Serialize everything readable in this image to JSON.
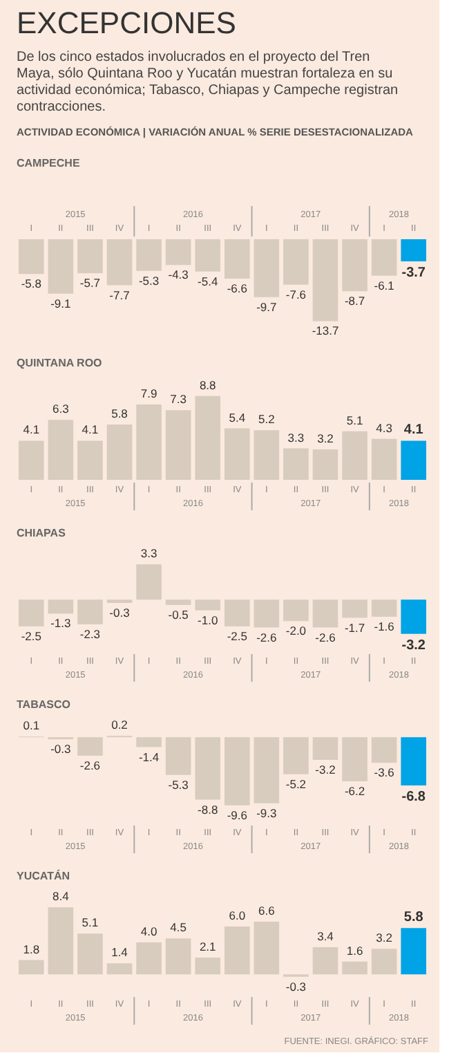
{
  "chart_data": [
    {
      "type": "other",
      "title": "EXCEPCIONES",
      "subtitle": "De los cinco estados involucrados en el proyecto del Tren Maya, sólo Quintana Roo y Yucatán muestran fortaleza en su actividad económica; Tabasco, Chiapas y Campeche registran contracciones.",
      "annotations": [
        "ACTIVIDAD ECONÓMICA | VARIACIÓN ANUAL % SERIE DESESTACIONALIZADA"
      ]
    },
    {
      "type": "bar",
      "title": "CAMPECHE",
      "categories": [
        "I",
        "II",
        "III",
        "IV",
        "I",
        "II",
        "III",
        "IV",
        "I",
        "II",
        "III",
        "IV",
        "I",
        "II"
      ],
      "values": [
        -5.8,
        -9.1,
        -5.7,
        -7.7,
        -5.3,
        -4.3,
        -5.4,
        -6.6,
        -9.7,
        -7.6,
        -13.7,
        -8.7,
        -6.1,
        -3.7
      ],
      "value_labels": [
        "-5.8",
        "-9.1",
        "-5.7",
        "-7.7",
        "-5.3",
        "-4.3",
        "-5.4",
        "-6.6",
        "-9.7",
        "-7.6",
        "-13.7",
        "-8.7",
        "-6.1",
        "-3.7"
      ],
      "colors": [
        "#d8ccbf",
        "#d8ccbf",
        "#d8ccbf",
        "#d8ccbf",
        "#d8ccbf",
        "#d8ccbf",
        "#d8ccbf",
        "#d8ccbf",
        "#d8ccbf",
        "#d8ccbf",
        "#d8ccbf",
        "#d8ccbf",
        "#d8ccbf",
        "#00a3e6"
      ],
      "annotations": [
        "2015",
        "2016",
        "2017",
        "2018"
      ]
    },
    {
      "type": "bar",
      "title": "QUINTANA ROO",
      "categories": [
        "I",
        "II",
        "III",
        "IV",
        "I",
        "II",
        "III",
        "IV",
        "I",
        "II",
        "III",
        "IV",
        "I",
        "II"
      ],
      "values": [
        4.1,
        6.3,
        4.1,
        5.8,
        7.9,
        7.3,
        8.8,
        5.4,
        5.2,
        3.3,
        3.2,
        5.1,
        4.3,
        4.1
      ],
      "value_labels": [
        "4.1",
        "6.3",
        "4.1",
        "5.8",
        "7.9",
        "7.3",
        "8.8",
        "5.4",
        "5.2",
        "3.3",
        "3.2",
        "5.1",
        "4.3",
        "4.1"
      ],
      "colors": [
        "#d8ccbf",
        "#d8ccbf",
        "#d8ccbf",
        "#d8ccbf",
        "#d8ccbf",
        "#d8ccbf",
        "#d8ccbf",
        "#d8ccbf",
        "#d8ccbf",
        "#d8ccbf",
        "#d8ccbf",
        "#d8ccbf",
        "#d8ccbf",
        "#00a3e6"
      ],
      "annotations": [
        "2015",
        "2016",
        "2017",
        "2018"
      ]
    },
    {
      "type": "bar",
      "title": "CHIAPAS",
      "categories": [
        "I",
        "II",
        "III",
        "IV",
        "I",
        "II",
        "III",
        "IV",
        "I",
        "II",
        "III",
        "IV",
        "I",
        "II"
      ],
      "values": [
        -2.5,
        -1.3,
        -2.3,
        -0.3,
        3.3,
        -0.5,
        -1.0,
        -2.5,
        -2.6,
        -2.0,
        -2.6,
        -1.7,
        -1.6,
        -3.2
      ],
      "value_labels": [
        "-2.5",
        "-1.3",
        "-2.3",
        "-0.3",
        "3.3",
        "-0.5",
        "-1.0",
        "-2.5",
        "-2.6",
        "-2.0",
        "-2.6",
        "-1.7",
        "-1.6",
        "-3.2"
      ],
      "colors": [
        "#d8ccbf",
        "#d8ccbf",
        "#d8ccbf",
        "#d8ccbf",
        "#d8ccbf",
        "#d8ccbf",
        "#d8ccbf",
        "#d8ccbf",
        "#d8ccbf",
        "#d8ccbf",
        "#d8ccbf",
        "#d8ccbf",
        "#d8ccbf",
        "#00a3e6"
      ],
      "annotations": [
        "2015",
        "2016",
        "2017",
        "2018"
      ]
    },
    {
      "type": "bar",
      "title": "TABASCO",
      "categories": [
        "I",
        "II",
        "III",
        "IV",
        "I",
        "II",
        "III",
        "IV",
        "I",
        "II",
        "III",
        "IV",
        "I",
        "II"
      ],
      "values": [
        0.1,
        -0.3,
        -2.6,
        0.2,
        -1.4,
        -5.3,
        -8.8,
        -9.6,
        -9.3,
        -5.2,
        -3.2,
        -6.2,
        -3.6,
        -6.8
      ],
      "value_labels": [
        "0.1",
        "-0.3",
        "-2.6",
        "0.2",
        "-1.4",
        "-5.3",
        "-8.8",
        "-9.6",
        "-9.3",
        "-5.2",
        "-3.2",
        "-6.2",
        "-3.6",
        "-6.8"
      ],
      "colors": [
        "#d8ccbf",
        "#d8ccbf",
        "#d8ccbf",
        "#d8ccbf",
        "#d8ccbf",
        "#d8ccbf",
        "#d8ccbf",
        "#d8ccbf",
        "#d8ccbf",
        "#d8ccbf",
        "#d8ccbf",
        "#d8ccbf",
        "#d8ccbf",
        "#00a3e6"
      ],
      "annotations": [
        "2015",
        "2016",
        "2017",
        "2018"
      ]
    },
    {
      "type": "bar",
      "title": "YUCATÁN",
      "categories": [
        "I",
        "II",
        "III",
        "IV",
        "I",
        "II",
        "III",
        "IV",
        "I",
        "II",
        "III",
        "IV",
        "I",
        "II"
      ],
      "values": [
        1.8,
        8.4,
        5.1,
        1.4,
        4.0,
        4.5,
        2.1,
        6.0,
        6.6,
        -0.3,
        3.4,
        1.6,
        3.2,
        5.8
      ],
      "value_labels": [
        "1.8",
        "8.4",
        "5.1",
        "1.4",
        "4.0",
        "4.5",
        "2.1",
        "6.0",
        "6.6",
        "-0.3",
        "3.4",
        "1.6",
        "3.2",
        "5.8"
      ],
      "colors": [
        "#d8ccbf",
        "#d8ccbf",
        "#d8ccbf",
        "#d8ccbf",
        "#d8ccbf",
        "#d8ccbf",
        "#d8ccbf",
        "#d8ccbf",
        "#d8ccbf",
        "#d8ccbf",
        "#d8ccbf",
        "#d8ccbf",
        "#d8ccbf",
        "#00a3e6"
      ],
      "annotations": [
        "2015",
        "2016",
        "2017",
        "2018",
        "FUENTE: INEGI. GRÁFICO: STAFF"
      ]
    }
  ]
}
